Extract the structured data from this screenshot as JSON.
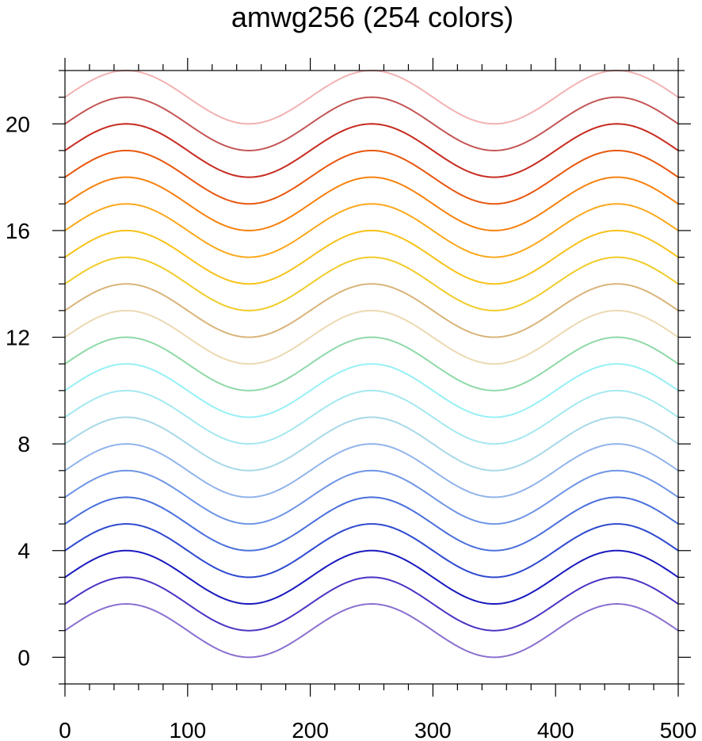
{
  "chart_data": {
    "type": "line",
    "title": "amwg256 (254 colors)",
    "xlabel": "",
    "ylabel": "",
    "xlim": [
      0,
      500
    ],
    "ylim": [
      -1,
      22
    ],
    "x_ticks": [
      0,
      100,
      200,
      300,
      400,
      500
    ],
    "y_ticks": [
      0,
      4,
      8,
      12,
      16,
      20
    ],
    "x_minor_step": 20,
    "y_minor_step": 1,
    "grid": false,
    "curve": {
      "function": "y = offset + sin(2*pi*x/200)",
      "x_start": 0,
      "x_end": 500,
      "amplitude": 1,
      "period": 200
    },
    "series": [
      {
        "offset": 1,
        "color": "#8a6fd0"
      },
      {
        "offset": 2,
        "color": "#4a33c4"
      },
      {
        "offset": 3,
        "color": "#1a1abf"
      },
      {
        "offset": 4,
        "color": "#2e49cf"
      },
      {
        "offset": 5,
        "color": "#4a6fdc"
      },
      {
        "offset": 6,
        "color": "#6f95e6"
      },
      {
        "offset": 7,
        "color": "#91b4eb"
      },
      {
        "offset": 8,
        "color": "#a8d8e8"
      },
      {
        "offset": 9,
        "color": "#a5e8f0"
      },
      {
        "offset": 10,
        "color": "#96f0f5"
      },
      {
        "offset": 11,
        "color": "#8fd9a8"
      },
      {
        "offset": 12,
        "color": "#ecd9b2"
      },
      {
        "offset": 13,
        "color": "#d9b47a"
      },
      {
        "offset": 14,
        "color": "#f0cc2a"
      },
      {
        "offset": 15,
        "color": "#f7c21a"
      },
      {
        "offset": 16,
        "color": "#fba81c"
      },
      {
        "offset": 17,
        "color": "#f7820f"
      },
      {
        "offset": 18,
        "color": "#e8570f"
      },
      {
        "offset": 19,
        "color": "#c72a1f"
      },
      {
        "offset": 20,
        "color": "#c45555"
      },
      {
        "offset": 21,
        "color": "#f2b2b2"
      }
    ]
  }
}
